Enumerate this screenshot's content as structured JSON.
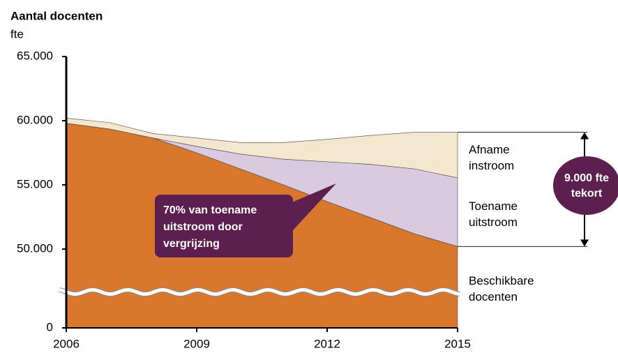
{
  "chart_data": {
    "type": "stacked_area",
    "title": "Aantal docenten",
    "y_label": "fte",
    "x": [
      2006,
      2007,
      2008,
      2009,
      2010,
      2011,
      2012,
      2013,
      2014,
      2015
    ],
    "xlim": [
      2006,
      2015
    ],
    "xticks": [
      2006,
      2009,
      2012,
      2015
    ],
    "ylim": [
      0,
      65000
    ],
    "yticks": [
      0,
      {
        "value": 50000,
        "label": "50.000"
      },
      {
        "value": 55000,
        "label": "55.000"
      },
      {
        "value": 60000,
        "label": "60.000"
      },
      {
        "value": 65000,
        "label": "65.000"
      }
    ],
    "y_axis_break": true,
    "series": [
      {
        "name": "Beschikbare docenten",
        "color": "#d9782d",
        "values": [
          59800,
          59350,
          58650,
          57500,
          56250,
          55000,
          53700,
          52450,
          51200,
          50200
        ]
      },
      {
        "name": "Toename uitstroom",
        "color": "#d9cadf",
        "values": [
          0,
          0,
          0,
          500,
          1150,
          2000,
          3100,
          4150,
          5050,
          5350
        ]
      },
      {
        "name": "Afname instroom",
        "color": "#f3e7d0",
        "values": [
          400,
          500,
          350,
          650,
          900,
          1300,
          1750,
          2250,
          2850,
          3550
        ]
      }
    ],
    "annotations": [
      {
        "lines": [
          "70% van toename",
          "uitstroom door",
          "vergrijzing"
        ]
      },
      {
        "lines": [
          "9.000 fte",
          "tekort"
        ]
      }
    ]
  }
}
